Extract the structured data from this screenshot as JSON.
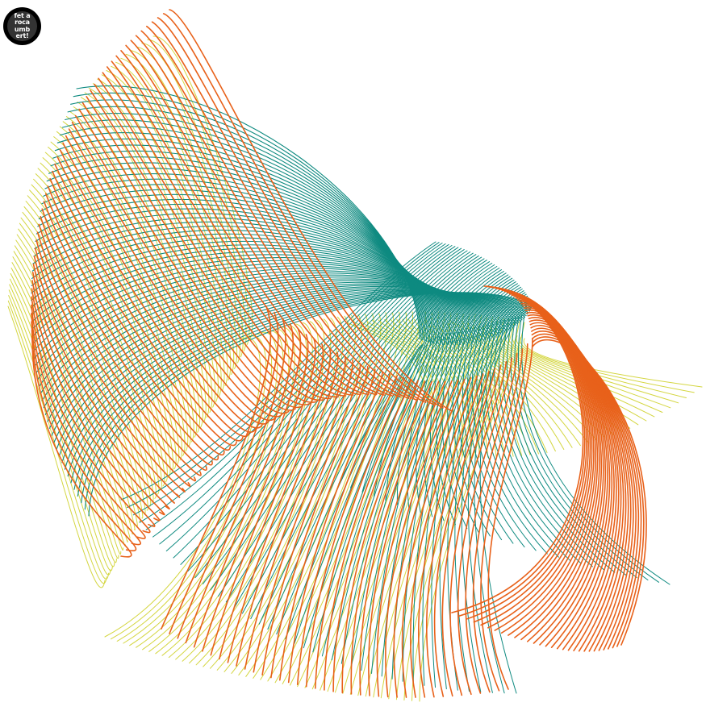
{
  "logo": {
    "lines": [
      "fet a",
      "roca",
      "umb",
      "ert!"
    ],
    "badge_color": "#000000",
    "inner_color": "#333333",
    "text_color": "#ffffff"
  },
  "artwork": {
    "background": "#ffffff",
    "families": [
      {
        "name": "teal",
        "color": "#0e8a80"
      },
      {
        "name": "orange",
        "color": "#e8611a"
      },
      {
        "name": "yellow",
        "color": "#d4d640"
      }
    ]
  }
}
